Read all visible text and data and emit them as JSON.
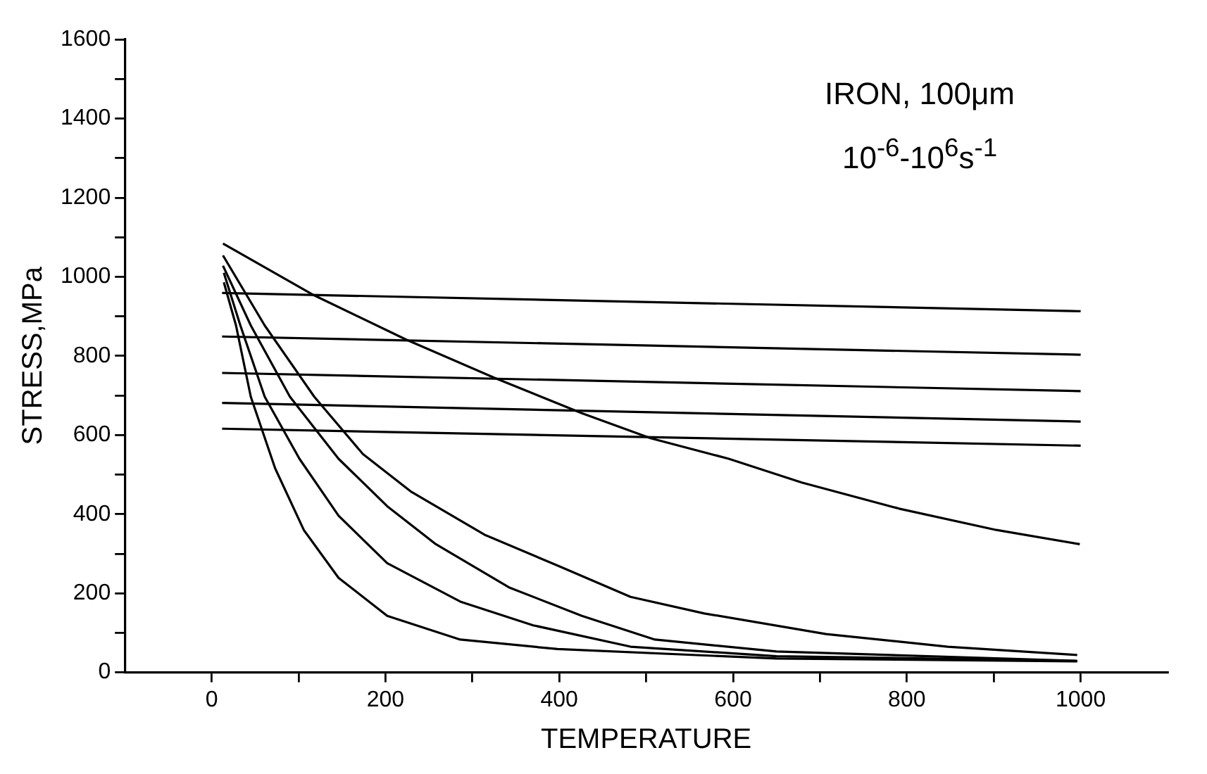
{
  "chart_data": {
    "type": "line",
    "xlabel": "TEMPERATURE",
    "ylabel": "STRESS,MPa",
    "annotations": [
      "IRON, 100μm",
      "10$^{-6}$-10$^{6}$s$^{-1}$"
    ],
    "xlim": [
      -100,
      1100
    ],
    "xticks": [
      0,
      {
        "value": 100,
        "label": null
      },
      200,
      {
        "value": 300,
        "label": null
      },
      400,
      {
        "value": 500,
        "label": null
      },
      600,
      {
        "value": 700,
        "label": null
      },
      800,
      {
        "value": 900,
        "label": null
      },
      1000
    ],
    "ylim": [
      0,
      1600
    ],
    "yticks": [
      0,
      {
        "value": 100,
        "label": null
      },
      200,
      {
        "value": 300,
        "label": null
      },
      400,
      {
        "value": 500,
        "label": null
      },
      600,
      {
        "value": 700,
        "label": null
      },
      800,
      {
        "value": 900,
        "label": null
      },
      1000,
      {
        "value": 1100,
        "label": null
      },
      1200,
      {
        "value": 1300,
        "label": null
      },
      1400,
      {
        "value": 1500,
        "label": null
      },
      1600
    ],
    "grid": false,
    "legend": false,
    "marker": "none",
    "line_style": "solid",
    "series": [
      {
        "color": "#000000",
        "x": [
          12,
          1000
        ],
        "values": [
          959,
          913
        ]
      },
      {
        "color": "#000000",
        "x": [
          12,
          1000
        ],
        "values": [
          849,
          803
        ]
      },
      {
        "color": "#000000",
        "x": [
          12,
          1000
        ],
        "values": [
          757,
          711
        ]
      },
      {
        "color": "#000000",
        "x": [
          12,
          1000
        ],
        "values": [
          681,
          634
        ]
      },
      {
        "color": "#000000",
        "x": [
          12,
          1000
        ],
        "values": [
          616,
          573
        ]
      },
      {
        "color": "#000000",
        "x": [
          13,
          118,
          224,
          325,
          426,
          505,
          595,
          679,
          791,
          903,
          999
        ],
        "values": [
          1084,
          953,
          841,
          745,
          655,
          592,
          540,
          480,
          414,
          360,
          324
        ]
      },
      {
        "color": "#000000",
        "x": [
          13,
          61,
          118,
          174,
          230,
          314,
          398,
          482,
          567,
          707,
          847,
          996
        ],
        "values": [
          1054,
          877,
          697,
          552,
          456,
          348,
          270,
          191,
          149,
          97,
          65,
          44
        ]
      },
      {
        "color": "#000000",
        "x": [
          13,
          45,
          90,
          146,
          202,
          258,
          342,
          426,
          510,
          650,
          996
        ],
        "values": [
          1028,
          877,
          697,
          540,
          420,
          324,
          215,
          143,
          83,
          53,
          29
        ]
      },
      {
        "color": "#000000",
        "x": [
          14,
          33,
          61,
          101,
          146,
          202,
          286,
          370,
          482,
          650,
          996
        ],
        "values": [
          1010,
          877,
          697,
          540,
          396,
          276,
          179,
          119,
          65,
          41,
          29
        ]
      },
      {
        "color": "#000000",
        "x": [
          14,
          28,
          45,
          73,
          106,
          146,
          202,
          286,
          398,
          650,
          996
        ],
        "values": [
          986,
          877,
          697,
          516,
          360,
          239,
          143,
          83,
          59,
          35,
          28
        ]
      }
    ]
  }
}
